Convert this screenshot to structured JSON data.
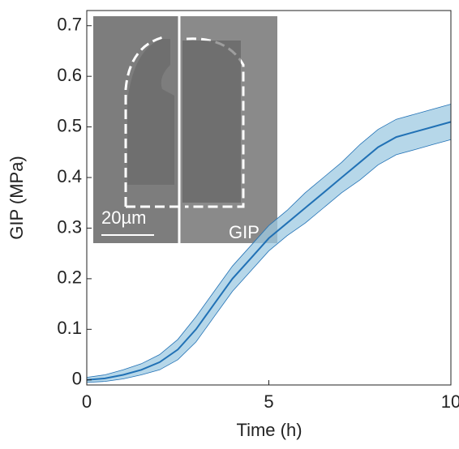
{
  "chart_data": {
    "type": "line",
    "xlabel": "Time (h)",
    "ylabel": "GIP (MPa)",
    "x": [
      0,
      0.5,
      1,
      1.5,
      2,
      2.5,
      3,
      3.5,
      4,
      4.5,
      5,
      5.5,
      6,
      6.5,
      7,
      7.5,
      8,
      8.5,
      9,
      9.5,
      10
    ],
    "values": [
      0,
      0.003,
      0.01,
      0.02,
      0.035,
      0.06,
      0.1,
      0.15,
      0.2,
      0.24,
      0.28,
      0.31,
      0.34,
      0.37,
      0.4,
      0.43,
      0.46,
      0.48,
      0.49,
      0.5,
      0.51
    ],
    "upper": [
      0.005,
      0.01,
      0.02,
      0.032,
      0.05,
      0.08,
      0.125,
      0.175,
      0.225,
      0.265,
      0.305,
      0.335,
      0.37,
      0.4,
      0.43,
      0.465,
      0.495,
      0.515,
      0.525,
      0.535,
      0.545
    ],
    "lower": [
      -0.005,
      -0.003,
      0.002,
      0.01,
      0.02,
      0.04,
      0.075,
      0.125,
      0.175,
      0.215,
      0.255,
      0.285,
      0.31,
      0.34,
      0.37,
      0.395,
      0.425,
      0.445,
      0.455,
      0.465,
      0.475
    ],
    "color": "#2171b5",
    "band_color": "#9ecae1",
    "xlim": [
      0,
      10
    ],
    "ylim": [
      -0.01,
      0.73
    ],
    "xticks": [
      0,
      5,
      10
    ],
    "yticks": [
      0,
      0.1,
      0.2,
      0.3,
      0.4,
      0.5,
      0.6,
      0.7
    ],
    "inset": {
      "scale_label": "20µm",
      "label": "GIP"
    }
  }
}
